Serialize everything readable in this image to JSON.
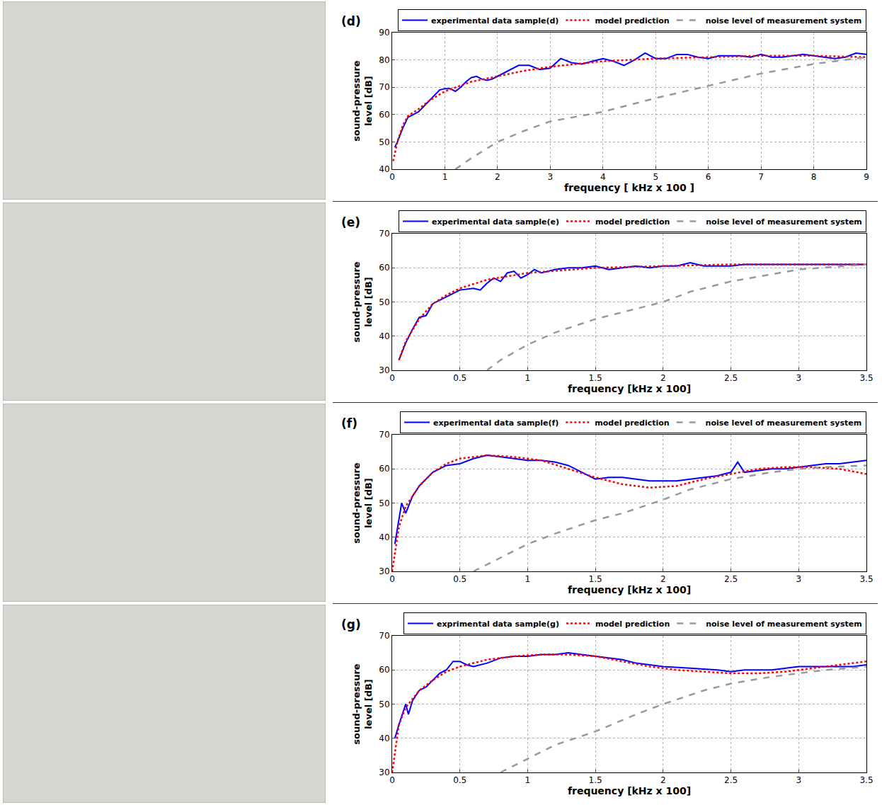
{
  "chart_data": [
    {
      "type": "line",
      "label": "(d)",
      "x_label": "frequency [ kHz x 100 ]",
      "y_label": "sound-pressure level [dB]",
      "xlim": [
        0,
        9
      ],
      "xticks": [
        0,
        1,
        2,
        3,
        4,
        5,
        6,
        7,
        8,
        9
      ],
      "ylim": [
        40,
        90
      ],
      "yticks": [
        40,
        50,
        60,
        70,
        80,
        90
      ],
      "grid": true,
      "legend": "top right",
      "series": [
        {
          "name": "experimental data sample(d)",
          "color": "#0000ff",
          "line_style": "solid",
          "x": [
            0.05,
            0.1,
            0.2,
            0.3,
            0.4,
            0.5,
            0.6,
            0.7,
            0.8,
            0.9,
            1.0,
            1.1,
            1.2,
            1.3,
            1.4,
            1.5,
            1.6,
            1.7,
            1.8,
            1.9,
            2.0,
            2.2,
            2.4,
            2.6,
            2.8,
            3.0,
            3.2,
            3.4,
            3.6,
            3.8,
            4.0,
            4.2,
            4.4,
            4.6,
            4.8,
            5.0,
            5.2,
            5.4,
            5.6,
            5.8,
            6.0,
            6.2,
            6.4,
            6.6,
            6.8,
            7.0,
            7.2,
            7.4,
            7.6,
            7.8,
            8.0,
            8.2,
            8.4,
            8.6,
            8.8,
            9.0
          ],
          "values": [
            48,
            50,
            55,
            59,
            60,
            61,
            63,
            65,
            67,
            69,
            69.5,
            69.5,
            68.5,
            70,
            72,
            73.5,
            74,
            73,
            72.5,
            73,
            74,
            76,
            78,
            78,
            76.5,
            77,
            80.5,
            79,
            78.5,
            79.5,
            80.5,
            79.5,
            78,
            80,
            82.5,
            80.5,
            80.5,
            82,
            82,
            81,
            80.5,
            81.5,
            81.5,
            81.5,
            81,
            82,
            81,
            81,
            81.5,
            82,
            81.5,
            81,
            80.5,
            81,
            82.5,
            82
          ]
        },
        {
          "name": "model prediction",
          "color": "#ff0000",
          "line_style": "dot",
          "x": [
            0.02,
            0.1,
            0.2,
            0.3,
            0.5,
            0.7,
            1,
            1.5,
            2,
            2.5,
            3,
            3.5,
            4,
            4.5,
            5,
            6,
            7,
            8,
            9
          ],
          "values": [
            43,
            50,
            56,
            59.5,
            62,
            65,
            68.5,
            72,
            74,
            76,
            77.5,
            78.5,
            79.5,
            80,
            80.5,
            81,
            81.5,
            81.5,
            81
          ]
        },
        {
          "name": "noise level of measurement system",
          "color": "#999999",
          "line_style": "dash",
          "x": [
            1.2,
            1.5,
            2,
            2.5,
            3,
            4,
            5,
            6,
            7,
            8,
            9
          ],
          "values": [
            40,
            44,
            50,
            54,
            57.5,
            61,
            66,
            70.5,
            75,
            78.5,
            81
          ]
        }
      ]
    },
    {
      "type": "line",
      "label": "(e)",
      "x_label": "frequency [kHz x 100]",
      "y_label": "sound-pressure level [dB]",
      "xlim": [
        0,
        3.5
      ],
      "xticks": [
        0,
        0.5,
        1,
        1.5,
        2,
        2.5,
        3,
        3.5
      ],
      "ylim": [
        30,
        70
      ],
      "yticks": [
        30,
        40,
        50,
        60,
        70
      ],
      "grid": true,
      "legend": "top right",
      "series": [
        {
          "name": "experimental data sample(e)",
          "color": "#0000ff",
          "line_style": "solid",
          "x": [
            0.05,
            0.1,
            0.15,
            0.2,
            0.25,
            0.3,
            0.35,
            0.4,
            0.5,
            0.6,
            0.65,
            0.7,
            0.75,
            0.8,
            0.85,
            0.9,
            0.95,
            1.0,
            1.05,
            1.1,
            1.2,
            1.3,
            1.4,
            1.5,
            1.6,
            1.7,
            1.8,
            1.9,
            2.0,
            2.1,
            2.2,
            2.3,
            2.4,
            2.5,
            2.6,
            2.7,
            2.8,
            2.9,
            3.0,
            3.2,
            3.4,
            3.5
          ],
          "values": [
            33,
            38,
            42,
            45.5,
            46,
            49.5,
            50.5,
            51.5,
            53.5,
            54,
            53.5,
            55.5,
            57,
            56,
            58.5,
            59,
            57,
            58,
            59.5,
            58.5,
            59.5,
            60,
            60,
            60.5,
            59.5,
            60,
            60.5,
            60,
            60.5,
            60.5,
            61.5,
            60.5,
            60.5,
            60.5,
            61,
            61,
            61,
            61,
            61,
            61,
            61,
            61
          ]
        },
        {
          "name": "model prediction",
          "color": "#ff0000",
          "line_style": "dot",
          "x": [
            0.05,
            0.1,
            0.2,
            0.3,
            0.4,
            0.5,
            0.7,
            1.0,
            1.5,
            2,
            2.5,
            3,
            3.5
          ],
          "values": [
            33,
            38.5,
            45,
            49.5,
            52,
            54,
            56.5,
            58.5,
            60,
            60.5,
            61,
            61,
            61
          ]
        },
        {
          "name": "noise level of measurement system",
          "color": "#999999",
          "line_style": "dash",
          "x": [
            0.7,
            0.8,
            1.0,
            1.2,
            1.5,
            1.7,
            2.0,
            2.2,
            2.5,
            3.0,
            3.5
          ],
          "values": [
            30,
            33,
            37.5,
            41,
            45,
            47,
            50,
            53,
            56,
            59.5,
            61
          ]
        }
      ]
    },
    {
      "type": "line",
      "label": "(f)",
      "x_label": "frequency [kHz x 100]",
      "y_label": "sound-pressure level [dB]",
      "xlim": [
        0,
        3.5
      ],
      "xticks": [
        0,
        0.5,
        1,
        1.5,
        2,
        2.5,
        3,
        3.5
      ],
      "ylim": [
        30,
        70
      ],
      "yticks": [
        30,
        40,
        50,
        60,
        70
      ],
      "grid": true,
      "legend": "top right",
      "series": [
        {
          "name": "experimental data sample(f)",
          "color": "#0000ff",
          "line_style": "solid",
          "x": [
            0.02,
            0.05,
            0.07,
            0.1,
            0.15,
            0.2,
            0.3,
            0.4,
            0.5,
            0.6,
            0.7,
            0.8,
            0.9,
            1.0,
            1.1,
            1.2,
            1.3,
            1.4,
            1.5,
            1.6,
            1.7,
            1.8,
            1.9,
            2.0,
            2.1,
            2.2,
            2.3,
            2.4,
            2.5,
            2.55,
            2.6,
            2.7,
            2.8,
            2.9,
            3.0,
            3.1,
            3.2,
            3.3,
            3.4,
            3.5
          ],
          "values": [
            38,
            45,
            50,
            47,
            52,
            55,
            59,
            61,
            61.5,
            63,
            64,
            63.5,
            63,
            62.5,
            62.5,
            62,
            61,
            59,
            57,
            57.5,
            57.5,
            57,
            56.5,
            56.5,
            56.5,
            57,
            57.5,
            58,
            59,
            62,
            59,
            59.5,
            60,
            60,
            60.5,
            61,
            61.5,
            61.5,
            62,
            62.5
          ]
        },
        {
          "name": "model prediction",
          "color": "#ff0000",
          "line_style": "dot",
          "x": [
            0,
            0.05,
            0.1,
            0.2,
            0.3,
            0.4,
            0.5,
            0.7,
            0.9,
            1.1,
            1.3,
            1.5,
            1.7,
            1.9,
            2.1,
            2.3,
            2.5,
            2.7,
            2.9,
            3.1,
            3.3,
            3.5
          ],
          "values": [
            30,
            43,
            49,
            55,
            59,
            61.5,
            63,
            64,
            63.5,
            62.5,
            60,
            57.5,
            55.5,
            54.5,
            55,
            57,
            58.5,
            60,
            60.5,
            60.5,
            60,
            58.5
          ]
        },
        {
          "name": "noise level of measurement system",
          "color": "#999999",
          "line_style": "dash",
          "x": [
            0.6,
            0.8,
            1.0,
            1.2,
            1.5,
            1.7,
            2.0,
            2.2,
            2.5,
            2.8,
            3.0,
            3.2,
            3.5
          ],
          "values": [
            30,
            34,
            38,
            41,
            45,
            47,
            51,
            54,
            57,
            59,
            60,
            60.5,
            61
          ]
        }
      ]
    },
    {
      "type": "line",
      "label": "(g)",
      "x_label": "frequency [kHz x 100]",
      "y_label": "sound-pressure level [dB]",
      "xlim": [
        0,
        3.5
      ],
      "xticks": [
        0,
        0.5,
        1,
        1.5,
        2,
        2.5,
        3,
        3.5
      ],
      "ylim": [
        30,
        70
      ],
      "yticks": [
        30,
        40,
        50,
        60,
        70
      ],
      "grid": true,
      "legend": "top right",
      "series": [
        {
          "name": "exprimental data sample(g)",
          "color": "#0000ff",
          "line_style": "solid",
          "x": [
            0.02,
            0.05,
            0.1,
            0.12,
            0.15,
            0.2,
            0.25,
            0.3,
            0.35,
            0.4,
            0.45,
            0.5,
            0.55,
            0.6,
            0.7,
            0.8,
            0.9,
            1.0,
            1.1,
            1.2,
            1.3,
            1.4,
            1.5,
            1.6,
            1.7,
            1.8,
            1.9,
            2.0,
            2.2,
            2.4,
            2.5,
            2.6,
            2.8,
            3.0,
            3.2,
            3.4,
            3.5
          ],
          "values": [
            40,
            44,
            50,
            47,
            51,
            54,
            55,
            57,
            59,
            60,
            62.5,
            62.5,
            61.5,
            61,
            62,
            63.5,
            64,
            64,
            64.5,
            64.5,
            65,
            64.5,
            64,
            63.5,
            63,
            62,
            61.5,
            61,
            60.5,
            60,
            59.5,
            60,
            60,
            61,
            61,
            61,
            61.5
          ]
        },
        {
          "name": "model prediction",
          "color": "#ff0000",
          "line_style": "dot",
          "x": [
            0,
            0.05,
            0.1,
            0.2,
            0.3,
            0.4,
            0.5,
            0.7,
            0.9,
            1.1,
            1.3,
            1.5,
            1.7,
            1.9,
            2.1,
            2.3,
            2.5,
            2.7,
            2.9,
            3.1,
            3.3,
            3.5
          ],
          "values": [
            30,
            44,
            49,
            54,
            57,
            59.5,
            61,
            63,
            64,
            64.5,
            64.5,
            64,
            62.5,
            61,
            60,
            59.5,
            59,
            59,
            59.5,
            60.5,
            61.5,
            62.5
          ]
        },
        {
          "name": "noise level of measurement system",
          "color": "#999999",
          "line_style": "dash",
          "x": [
            0.8,
            1.0,
            1.2,
            1.5,
            1.8,
            2.0,
            2.3,
            2.5,
            2.8,
            3.0,
            3.2,
            3.5
          ],
          "values": [
            30,
            34,
            38,
            42,
            47,
            50,
            54,
            56,
            58,
            59,
            60,
            61
          ]
        }
      ]
    }
  ]
}
